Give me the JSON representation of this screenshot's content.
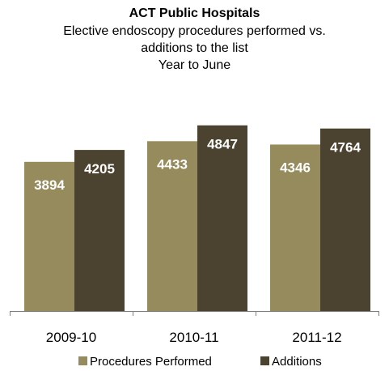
{
  "colors": {
    "procedures": "#958B5C",
    "additions": "#4B4230",
    "axis": "#7F7F7F"
  },
  "chart_data": {
    "type": "bar",
    "title": "ACT Public Hospitals",
    "subtitle_lines": [
      "Elective endoscopy procedures performed vs.",
      "additions to the list",
      "Year to June"
    ],
    "categories": [
      "2009-10",
      "2010-11",
      "2011-12"
    ],
    "series": [
      {
        "name": "Procedures Performed",
        "values": [
          3894,
          4433,
          4346
        ],
        "color": "#958B5C"
      },
      {
        "name": "Additions",
        "values": [
          4205,
          4847,
          4764
        ],
        "color": "#4B4230"
      }
    ],
    "ylim": [
      0,
      6000
    ],
    "grid": false,
    "legend_position": "bottom"
  }
}
